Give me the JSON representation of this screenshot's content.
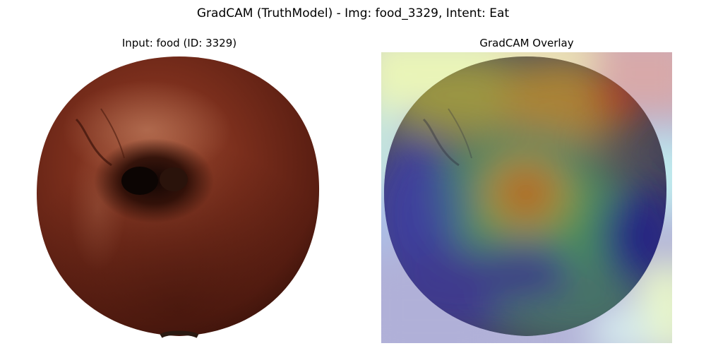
{
  "figure": {
    "suptitle": "GradCAM (TruthModel) - Img: food_3329, Intent: Eat"
  },
  "panels": {
    "input": {
      "title": "Input: food (ID: 3329)",
      "image_subject": "apple"
    },
    "overlay": {
      "title": "GradCAM Overlay",
      "colormap": "jet",
      "heatmap_subject": "apple"
    }
  },
  "colors": {
    "background": "#ffffff",
    "apple_mid": "#7a2e1c",
    "apple_dark": "#2a0d06",
    "apple_highlight": "#b0674a",
    "heat_low": "#2c2a9a",
    "heat_high": "#c41a10"
  }
}
